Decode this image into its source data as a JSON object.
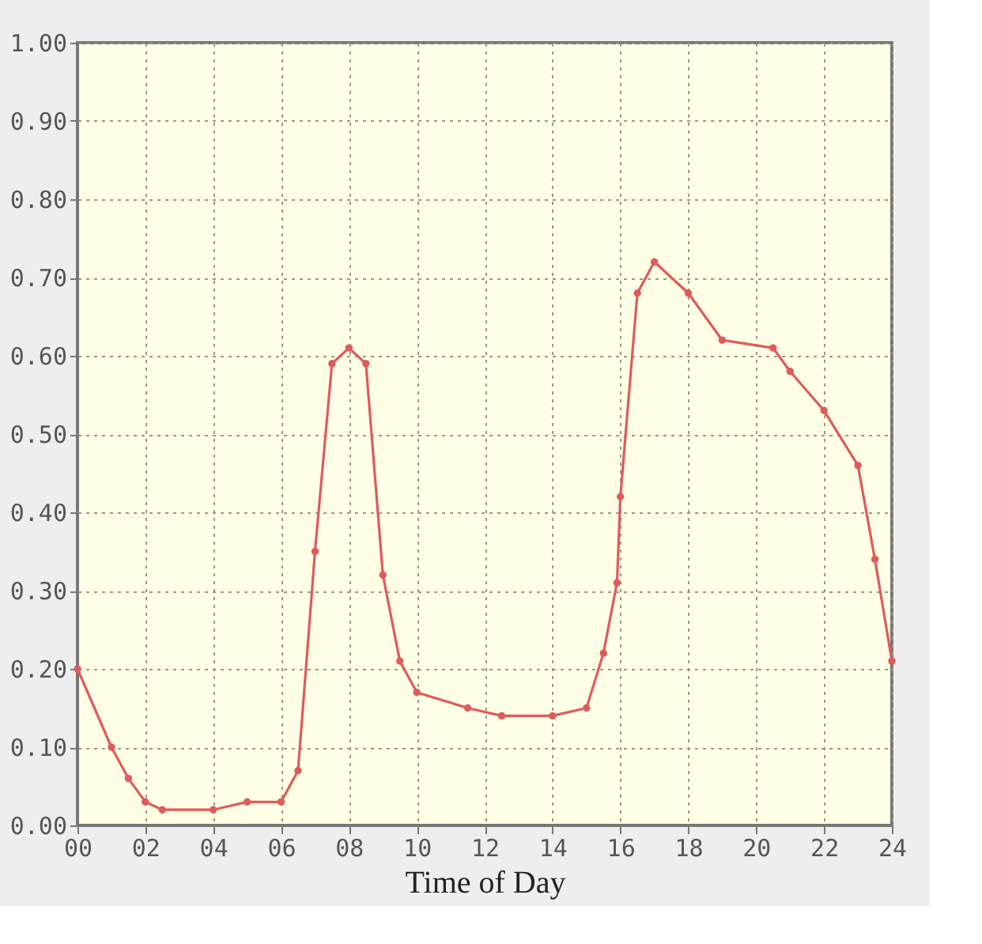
{
  "chart_data": {
    "type": "line",
    "xlabel": "Time of Day",
    "x": [
      0,
      1,
      1.5,
      2,
      2.5,
      4,
      5,
      6,
      6.5,
      7,
      7.5,
      8,
      8.5,
      9,
      9.5,
      10,
      11.5,
      12.5,
      14,
      15,
      15.5,
      15.9,
      16,
      16.5,
      17,
      18,
      19,
      20.5,
      21,
      22,
      23,
      23.5,
      24
    ],
    "series": [
      {
        "color": "#e05a5a",
        "values": [
          0.2,
          0.1,
          0.06,
          0.03,
          0.02,
          0.02,
          0.03,
          0.03,
          0.07,
          0.35,
          0.59,
          0.61,
          0.59,
          0.32,
          0.21,
          0.17,
          0.15,
          0.14,
          0.14,
          0.15,
          0.22,
          0.31,
          0.42,
          0.68,
          0.72,
          0.68,
          0.62,
          0.61,
          0.58,
          0.53,
          0.46,
          0.34,
          0.21
        ]
      }
    ],
    "xlim": [
      0,
      24
    ],
    "xticks": [
      {
        "value": 0,
        "label": "00"
      },
      {
        "value": 2,
        "label": "02"
      },
      {
        "value": 4,
        "label": "04"
      },
      {
        "value": 6,
        "label": "06"
      },
      {
        "value": 8,
        "label": "08"
      },
      {
        "value": 10,
        "label": "10"
      },
      12,
      14,
      16,
      18,
      20,
      22,
      24
    ],
    "ylim": [
      0,
      1
    ],
    "yticks": [
      {
        "value": 0,
        "label": "0.00"
      },
      {
        "value": 0.1,
        "label": "0.10"
      },
      {
        "value": 0.2,
        "label": "0.20"
      },
      {
        "value": 0.3,
        "label": "0.30"
      },
      {
        "value": 0.4,
        "label": "0.40"
      },
      {
        "value": 0.5,
        "label": "0.50"
      },
      {
        "value": 0.6,
        "label": "0.60"
      },
      {
        "value": 0.7,
        "label": "0.70"
      },
      {
        "value": 0.8,
        "label": "0.80"
      },
      {
        "value": 0.9,
        "label": "0.90"
      },
      {
        "value": 1,
        "label": "1.00"
      }
    ],
    "grid": true,
    "marker": "circle",
    "line_style": "solid"
  }
}
